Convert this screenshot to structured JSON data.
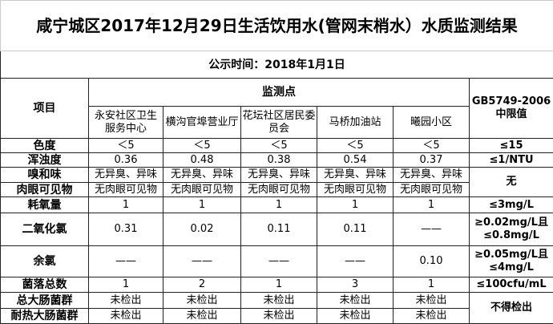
{
  "title": "咸宁城区2017年12月29日生活饮用水(管网末梢水）水质监测结果",
  "date": "公示时间：2018年1月1日",
  "header": {
    "item": "项目",
    "monitoring_point": "监测点",
    "sites": [
      "永安社区卫生服务中心",
      "横沟官埠营业厅",
      "花坛社区居民委员会",
      "马桥加油站",
      "曦园小区"
    ],
    "standard": [
      "GB5749-2006",
      "中限值"
    ]
  },
  "rows": [
    {
      "name": "色度",
      "values": [
        "＜5",
        "＜5",
        "＜5",
        "＜5",
        "＜5"
      ],
      "standard": "≤15"
    },
    {
      "name": "浑浊度",
      "values": [
        "0.36",
        "0.48",
        "0.38",
        "0.54",
        "0.37"
      ],
      "standard": "≤1/NTU"
    },
    {
      "name": "嗅和味",
      "values": [
        "无异臭、异味",
        "无异臭、异味",
        "无异臭、异味",
        "无异臭、异味",
        "无异臭、异味"
      ],
      "standard": "无"
    },
    {
      "name": "肉眼可见物",
      "values": [
        "无肉眼可见物",
        "无肉眼可见物",
        "无肉眼可见物",
        "无肉眼可见物",
        "无肉眼可见物"
      ]
    },
    {
      "name": "耗氧量",
      "values": [
        "1",
        "1",
        "1",
        "1",
        "1"
      ],
      "standard": "≤3mg/L"
    },
    {
      "name": "二氧化氯",
      "values": [
        "0.31",
        "0.02",
        "0.11",
        "0.11",
        "——"
      ],
      "standard": "≥0.02mg/L且≤0.8mg/L"
    },
    {
      "name": "余氯",
      "values": [
        "——",
        "——",
        "——",
        "——",
        "0.10"
      ],
      "standard": "≥0.05mg/L且≤4mg/L"
    },
    {
      "name": "菌落总数",
      "values": [
        "1",
        "2",
        "1",
        "3",
        "1"
      ],
      "standard": "≤100cfu/mL"
    },
    {
      "name": "总大肠菌群",
      "values": [
        "未检出",
        "未检出",
        "未检出",
        "未检出",
        "未检出"
      ],
      "standard": "不得检出"
    },
    {
      "name": "耐热大肠菌群",
      "values": [
        "未检出",
        "未检出",
        "未检出",
        "未检出",
        "未检出"
      ]
    }
  ]
}
